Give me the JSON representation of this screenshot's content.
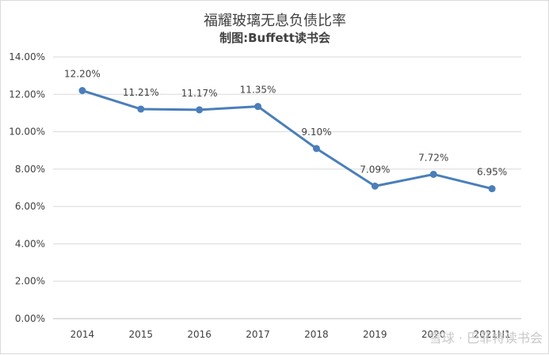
{
  "chart_data": {
    "type": "line",
    "title": "福耀玻璃无息负债比率",
    "subtitle": "制图:Buffett读书会",
    "categories": [
      "2014",
      "2015",
      "2016",
      "2017",
      "2018",
      "2019",
      "2020",
      "2021H1"
    ],
    "series": [
      {
        "values": [
          12.2,
          11.21,
          11.17,
          11.35,
          9.1,
          7.09,
          7.72,
          6.95
        ],
        "labels": [
          "12.20%",
          "11.21%",
          "11.17%",
          "11.35%",
          "9.10%",
          "7.09%",
          "7.72%",
          "6.95%"
        ],
        "color": "#4a7ebb"
      }
    ],
    "ylim": [
      0,
      14
    ],
    "yticks": [
      "0.00%",
      "2.00%",
      "4.00%",
      "6.00%",
      "8.00%",
      "10.00%",
      "12.00%",
      "14.00%"
    ],
    "grid": true,
    "legend": "none"
  },
  "watermark": "雪球 · 巴菲特读书会"
}
